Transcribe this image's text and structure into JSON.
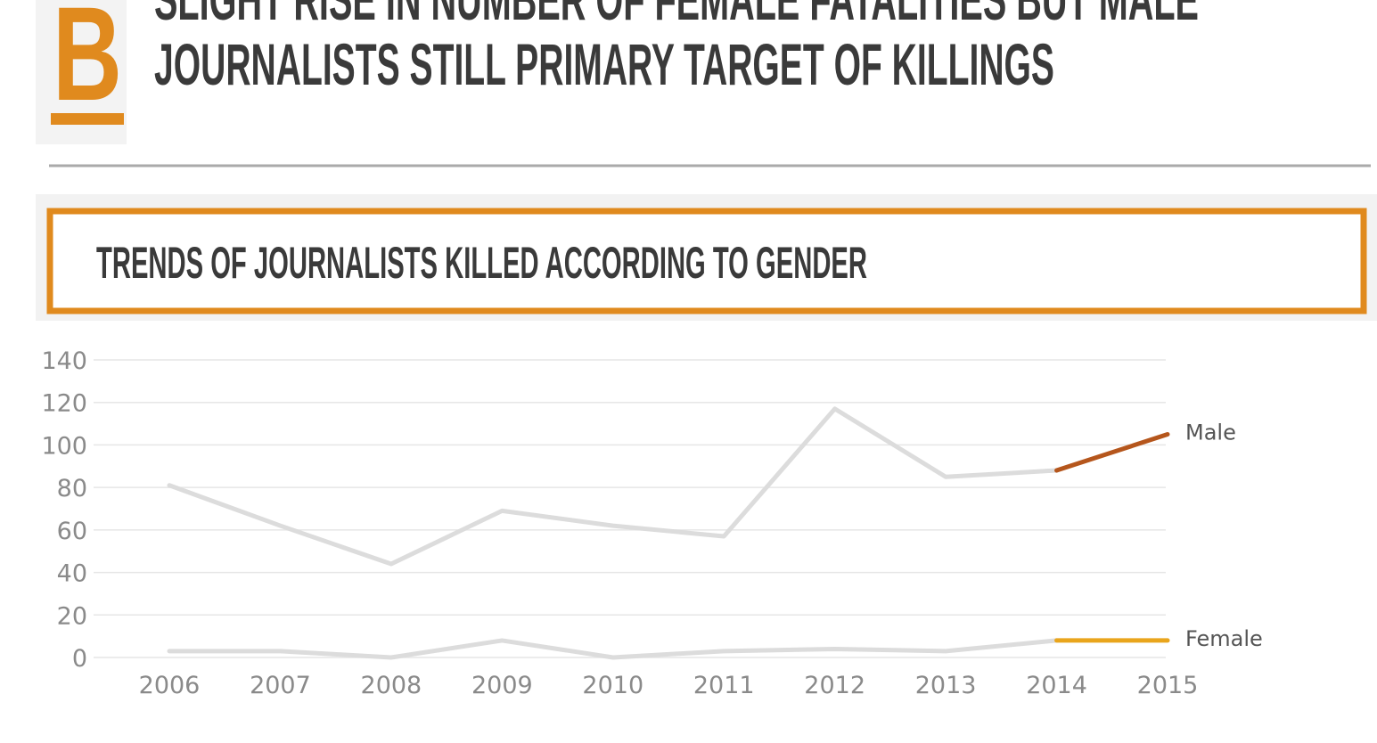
{
  "header": {
    "badge": "B",
    "title_lines": [
      "SLIGHT RISE IN NUMBER OF FEMALE FATALITIES BUT MALE",
      "JOURNALISTS STILL PRIMARY TARGET OF KILLINGS"
    ]
  },
  "chart_data": {
    "type": "line",
    "title": "TRENDS OF JOURNALISTS KILLED ACCORDING TO GENDER",
    "categories": [
      "2006",
      "2007",
      "2008",
      "2009",
      "2010",
      "2011",
      "2012",
      "2013",
      "2014",
      "2015"
    ],
    "series": [
      {
        "name": "Male",
        "color": "#b5561c",
        "values": [
          81,
          62,
          44,
          69,
          62,
          57,
          117,
          85,
          88,
          105
        ]
      },
      {
        "name": "Female",
        "color": "#e9a51c",
        "values": [
          3,
          3,
          0,
          8,
          0,
          3,
          4,
          3,
          8,
          8
        ]
      }
    ],
    "muted_color": "#dcdcdc",
    "ylim": [
      0,
      140
    ],
    "yticks": [
      0,
      20,
      40,
      60,
      80,
      100,
      120,
      140
    ],
    "grid": true
  }
}
